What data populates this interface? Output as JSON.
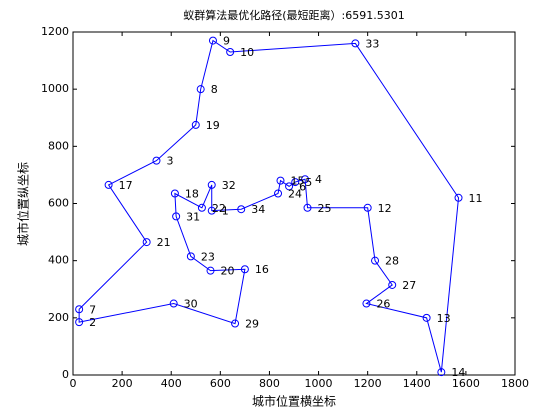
{
  "chart_data": {
    "type": "route",
    "title": "蚁群算法最优化路径(最短距离）:6591.5301",
    "xlabel": "城市位置横坐标",
    "ylabel": "城市位置纵坐标",
    "xlim": [
      0,
      1800
    ],
    "ylim": [
      0,
      1200
    ],
    "xticks": [
      0,
      200,
      400,
      600,
      800,
      1000,
      1200,
      1400,
      1600,
      1800
    ],
    "yticks": [
      0,
      200,
      400,
      600,
      800,
      1000,
      1200
    ],
    "series": [
      {
        "color": "#0000ff",
        "labels": [
          "1",
          "32",
          "22",
          "18",
          "31",
          "23",
          "20",
          "16",
          "29",
          "30",
          "2",
          "7",
          "21",
          "17",
          "3",
          "19",
          "8",
          "9",
          "10",
          "33",
          "11",
          "14",
          "13",
          "26",
          "27",
          "28",
          "12",
          "25",
          "4",
          "5",
          "6",
          "15",
          "24",
          "34"
        ],
        "x": [
          565,
          565,
          525,
          415,
          420,
          480,
          560,
          700,
          660,
          410,
          25,
          25,
          300,
          145,
          340,
          500,
          520,
          570,
          640,
          1150,
          1570,
          1500,
          1440,
          1195,
          1300,
          1230,
          1200,
          955,
          945,
          905,
          880,
          845,
          835,
          685
        ],
        "y": [
          575,
          665,
          585,
          635,
          555,
          415,
          365,
          370,
          180,
          250,
          185,
          230,
          465,
          665,
          750,
          875,
          1000,
          1170,
          1130,
          1160,
          620,
          10,
          200,
          250,
          315,
          400,
          585,
          585,
          685,
          675,
          660,
          680,
          635,
          580
        ]
      }
    ]
  }
}
